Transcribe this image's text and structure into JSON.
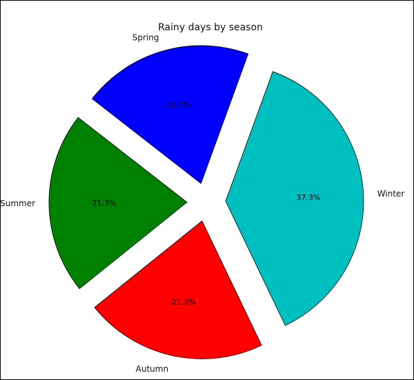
{
  "chart_data": {
    "type": "pie",
    "title": "Rainy days by season",
    "labels": [
      "Spring",
      "Summer",
      "Autumn",
      "Winter"
    ],
    "values": [
      20.0,
      21.3,
      21.3,
      37.3
    ],
    "percent_labels": [
      "20.0%",
      "21.3%",
      "21.3%",
      "37.3%"
    ],
    "colors": [
      "#0000ff",
      "#008000",
      "#ff0000",
      "#00bfbf"
    ],
    "exploded": true
  }
}
